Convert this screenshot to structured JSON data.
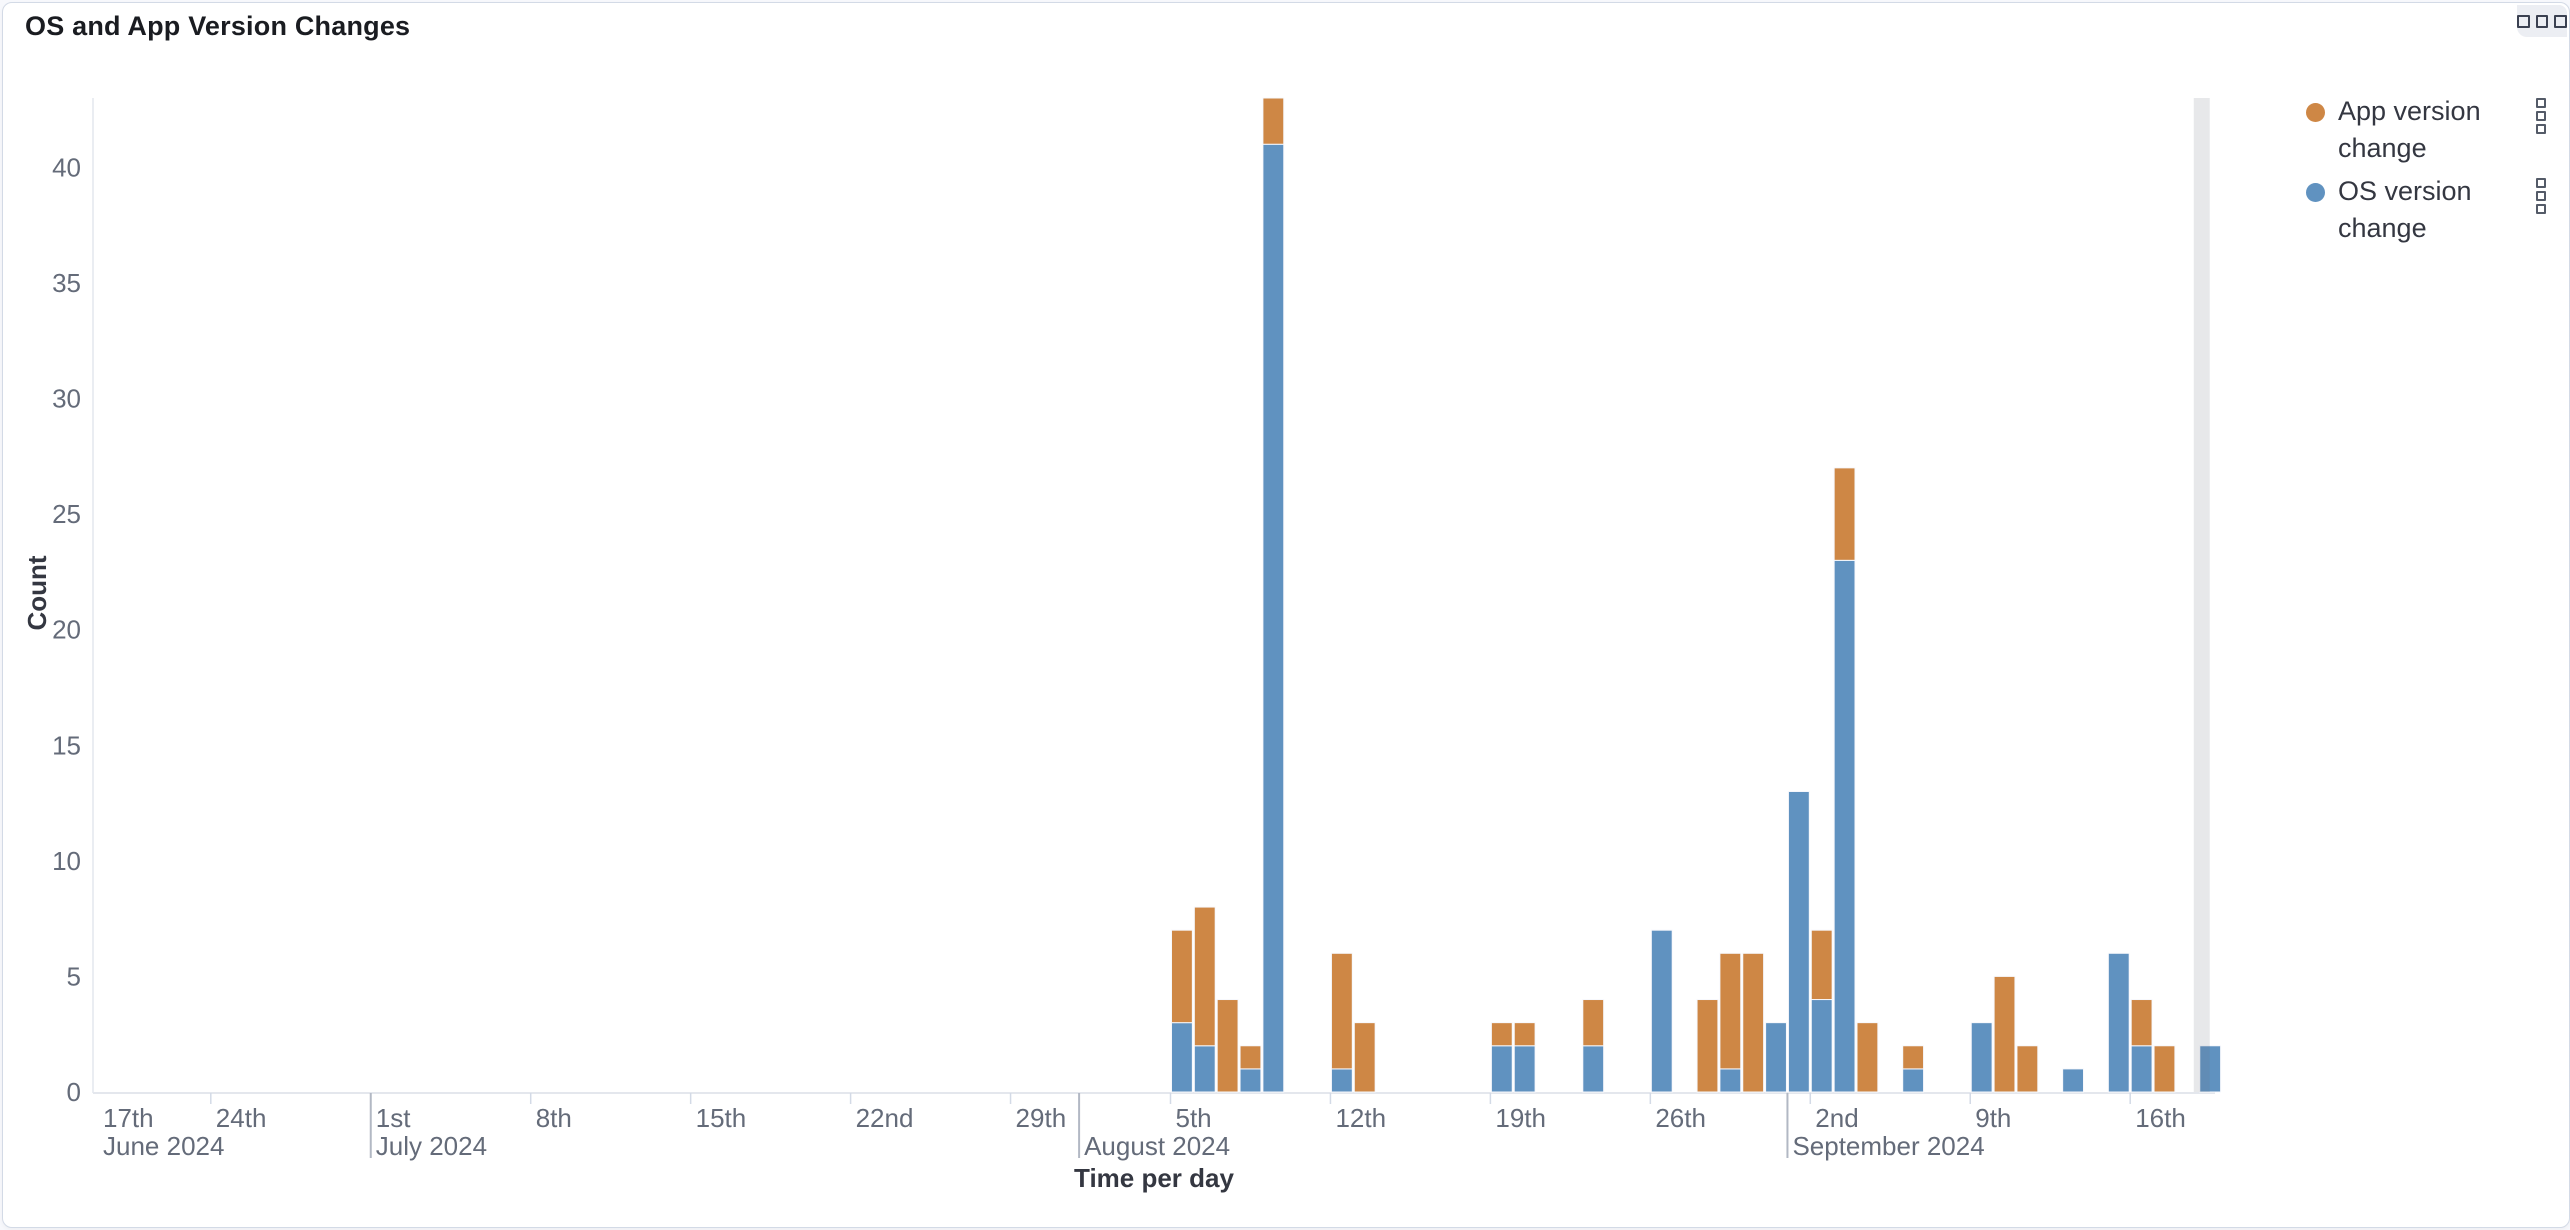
{
  "panel": {
    "title": "OS and App Version Changes",
    "options_icon": "three-squares-icon"
  },
  "legend": {
    "position": "right",
    "item_action_icon": "stacked-squares-options-icon"
  },
  "chart_data": {
    "type": "bar",
    "stacked": true,
    "title": "OS and App Version Changes",
    "xlabel": "Time per day",
    "ylabel": "Count",
    "ylim": [
      0,
      43
    ],
    "yticks": [
      0,
      5,
      10,
      15,
      20,
      25,
      30,
      35,
      40
    ],
    "grid": false,
    "legend_position": "right",
    "x_domain": [
      "2024-06-16",
      "2024-09-20"
    ],
    "x_ticks": [
      {
        "date": "2024-06-17",
        "label": "17th",
        "month": "June 2024",
        "major": false
      },
      {
        "date": "2024-06-24",
        "label": "24th",
        "month": "",
        "major": false
      },
      {
        "date": "2024-07-01",
        "label": "1st",
        "month": "July 2024",
        "major": true
      },
      {
        "date": "2024-07-08",
        "label": "8th",
        "month": "",
        "major": false
      },
      {
        "date": "2024-07-15",
        "label": "15th",
        "month": "",
        "major": false
      },
      {
        "date": "2024-07-22",
        "label": "22nd",
        "month": "",
        "major": false
      },
      {
        "date": "2024-07-29",
        "label": "29th",
        "month": "",
        "major": false
      },
      {
        "date": "2024-08-01",
        "label": "",
        "month": "August 2024",
        "major": true
      },
      {
        "date": "2024-08-05",
        "label": "5th",
        "month": "",
        "major": false
      },
      {
        "date": "2024-08-12",
        "label": "12th",
        "month": "",
        "major": false
      },
      {
        "date": "2024-08-19",
        "label": "19th",
        "month": "",
        "major": false
      },
      {
        "date": "2024-08-26",
        "label": "26th",
        "month": "",
        "major": false
      },
      {
        "date": "2024-09-01",
        "label": "",
        "month": "September 2024",
        "major": true
      },
      {
        "date": "2024-09-02",
        "label": "2nd",
        "month": "",
        "major": false
      },
      {
        "date": "2024-09-09",
        "label": "9th",
        "month": "",
        "major": false
      },
      {
        "date": "2024-09-16",
        "label": "16th",
        "month": "",
        "major": false
      }
    ],
    "series": [
      {
        "name": "App version change",
        "color": "#ce8745"
      },
      {
        "name": "OS version change",
        "color": "#6092c0"
      }
    ],
    "bars": [
      {
        "date": "2024-08-05",
        "os": 3,
        "app": 4
      },
      {
        "date": "2024-08-06",
        "os": 2,
        "app": 6
      },
      {
        "date": "2024-08-07",
        "os": 0,
        "app": 4
      },
      {
        "date": "2024-08-08",
        "os": 1,
        "app": 1
      },
      {
        "date": "2024-08-09",
        "os": 41,
        "app": 2
      },
      {
        "date": "2024-08-12",
        "os": 1,
        "app": 5
      },
      {
        "date": "2024-08-13",
        "os": 0,
        "app": 3
      },
      {
        "date": "2024-08-19",
        "os": 2,
        "app": 1
      },
      {
        "date": "2024-08-20",
        "os": 2,
        "app": 1
      },
      {
        "date": "2024-08-23",
        "os": 2,
        "app": 2
      },
      {
        "date": "2024-08-26",
        "os": 7,
        "app": 0
      },
      {
        "date": "2024-08-28",
        "os": 0,
        "app": 4
      },
      {
        "date": "2024-08-29",
        "os": 1,
        "app": 5
      },
      {
        "date": "2024-08-30",
        "os": 0,
        "app": 6
      },
      {
        "date": "2024-08-31",
        "os": 3,
        "app": 0
      },
      {
        "date": "2024-09-01",
        "os": 13,
        "app": 0
      },
      {
        "date": "2024-09-02",
        "os": 4,
        "app": 3
      },
      {
        "date": "2024-09-03",
        "os": 23,
        "app": 4
      },
      {
        "date": "2024-09-04",
        "os": 0,
        "app": 3
      },
      {
        "date": "2024-09-06",
        "os": 1,
        "app": 1
      },
      {
        "date": "2024-09-09",
        "os": 3,
        "app": 0
      },
      {
        "date": "2024-09-10",
        "os": 0,
        "app": 5
      },
      {
        "date": "2024-09-11",
        "os": 0,
        "app": 2
      },
      {
        "date": "2024-09-13",
        "os": 1,
        "app": 0
      },
      {
        "date": "2024-09-15",
        "os": 6,
        "app": 0
      },
      {
        "date": "2024-09-16",
        "os": 2,
        "app": 2
      },
      {
        "date": "2024-09-17",
        "os": 0,
        "app": 2
      },
      {
        "date": "2024-09-19",
        "os": 2,
        "app": 0
      }
    ],
    "partial_bucket_date": "2024-09-19",
    "colors": {
      "app_series": "#ce8745",
      "os_series": "#6092c0",
      "partial_band": "#69707d",
      "axis_line": "#e4e7ed",
      "minor_tick": "#d3dae6",
      "major_tick": "#b2b8c4",
      "tick_label": "#646b79"
    }
  }
}
